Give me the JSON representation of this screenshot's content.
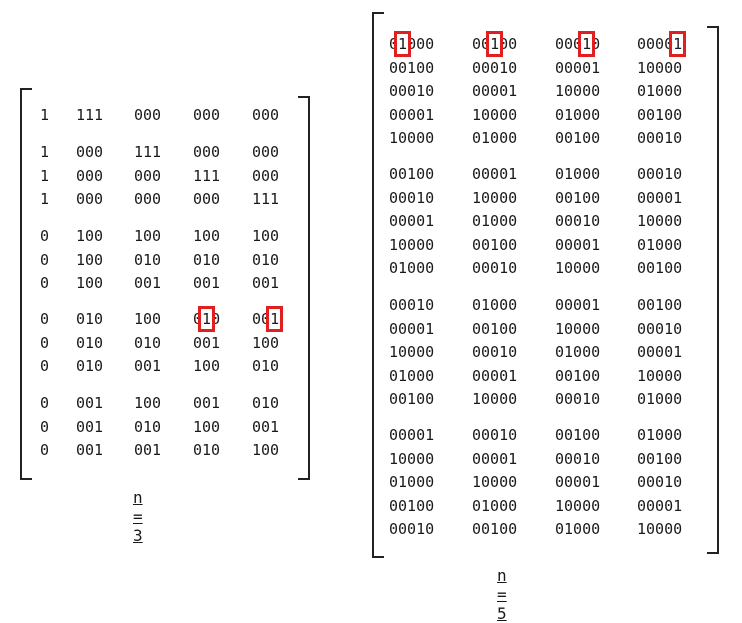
{
  "matrices": [
    {
      "caption": "n = 3",
      "groups": [
        [
          [
            "1",
            "111",
            "000",
            "000",
            "000"
          ]
        ],
        [
          [
            "1",
            "000",
            "111",
            "000",
            "000"
          ],
          [
            "1",
            "000",
            "000",
            "111",
            "000"
          ],
          [
            "1",
            "000",
            "000",
            "000",
            "111"
          ]
        ],
        [
          [
            "0",
            "100",
            "100",
            "100",
            "100"
          ],
          [
            "0",
            "100",
            "010",
            "010",
            "010"
          ],
          [
            "0",
            "100",
            "001",
            "001",
            "001"
          ]
        ],
        [
          [
            "0",
            "010",
            "100",
            "010",
            "001"
          ],
          [
            "0",
            "010",
            "010",
            "001",
            "100"
          ],
          [
            "0",
            "010",
            "001",
            "100",
            "010"
          ]
        ],
        [
          [
            "0",
            "001",
            "100",
            "001",
            "010"
          ],
          [
            "0",
            "001",
            "010",
            "100",
            "001"
          ],
          [
            "0",
            "001",
            "001",
            "010",
            "100"
          ]
        ]
      ],
      "highlights": [
        {
          "group": 3,
          "row": 0,
          "col": 3,
          "char": 1
        },
        {
          "group": 3,
          "row": 0,
          "col": 4,
          "char": 2
        }
      ]
    },
    {
      "caption": "n = 5",
      "groups": [
        [
          [
            "01000",
            "00100",
            "00010",
            "00001"
          ],
          [
            "00100",
            "00010",
            "00001",
            "10000"
          ],
          [
            "00010",
            "00001",
            "10000",
            "01000"
          ],
          [
            "00001",
            "10000",
            "01000",
            "00100"
          ],
          [
            "10000",
            "01000",
            "00100",
            "00010"
          ]
        ],
        [
          [
            "00100",
            "00001",
            "01000",
            "00010"
          ],
          [
            "00010",
            "10000",
            "00100",
            "00001"
          ],
          [
            "00001",
            "01000",
            "00010",
            "10000"
          ],
          [
            "10000",
            "00100",
            "00001",
            "01000"
          ],
          [
            "01000",
            "00010",
            "10000",
            "00100"
          ]
        ],
        [
          [
            "00010",
            "01000",
            "00001",
            "00100"
          ],
          [
            "00001",
            "00100",
            "10000",
            "00010"
          ],
          [
            "10000",
            "00010",
            "01000",
            "00001"
          ],
          [
            "01000",
            "00001",
            "00100",
            "10000"
          ],
          [
            "00100",
            "10000",
            "00010",
            "01000"
          ]
        ],
        [
          [
            "00001",
            "00010",
            "00100",
            "01000"
          ],
          [
            "10000",
            "00001",
            "00010",
            "00100"
          ],
          [
            "01000",
            "10000",
            "00001",
            "00010"
          ],
          [
            "00100",
            "01000",
            "10000",
            "00001"
          ],
          [
            "00010",
            "00100",
            "01000",
            "10000"
          ]
        ]
      ],
      "highlights": [
        {
          "group": 0,
          "row": 0,
          "col": 0,
          "char": 1
        },
        {
          "group": 0,
          "row": 0,
          "col": 1,
          "char": 2
        },
        {
          "group": 0,
          "row": 0,
          "col": 2,
          "char": 3
        },
        {
          "group": 0,
          "row": 0,
          "col": 3,
          "char": 4
        }
      ]
    }
  ]
}
